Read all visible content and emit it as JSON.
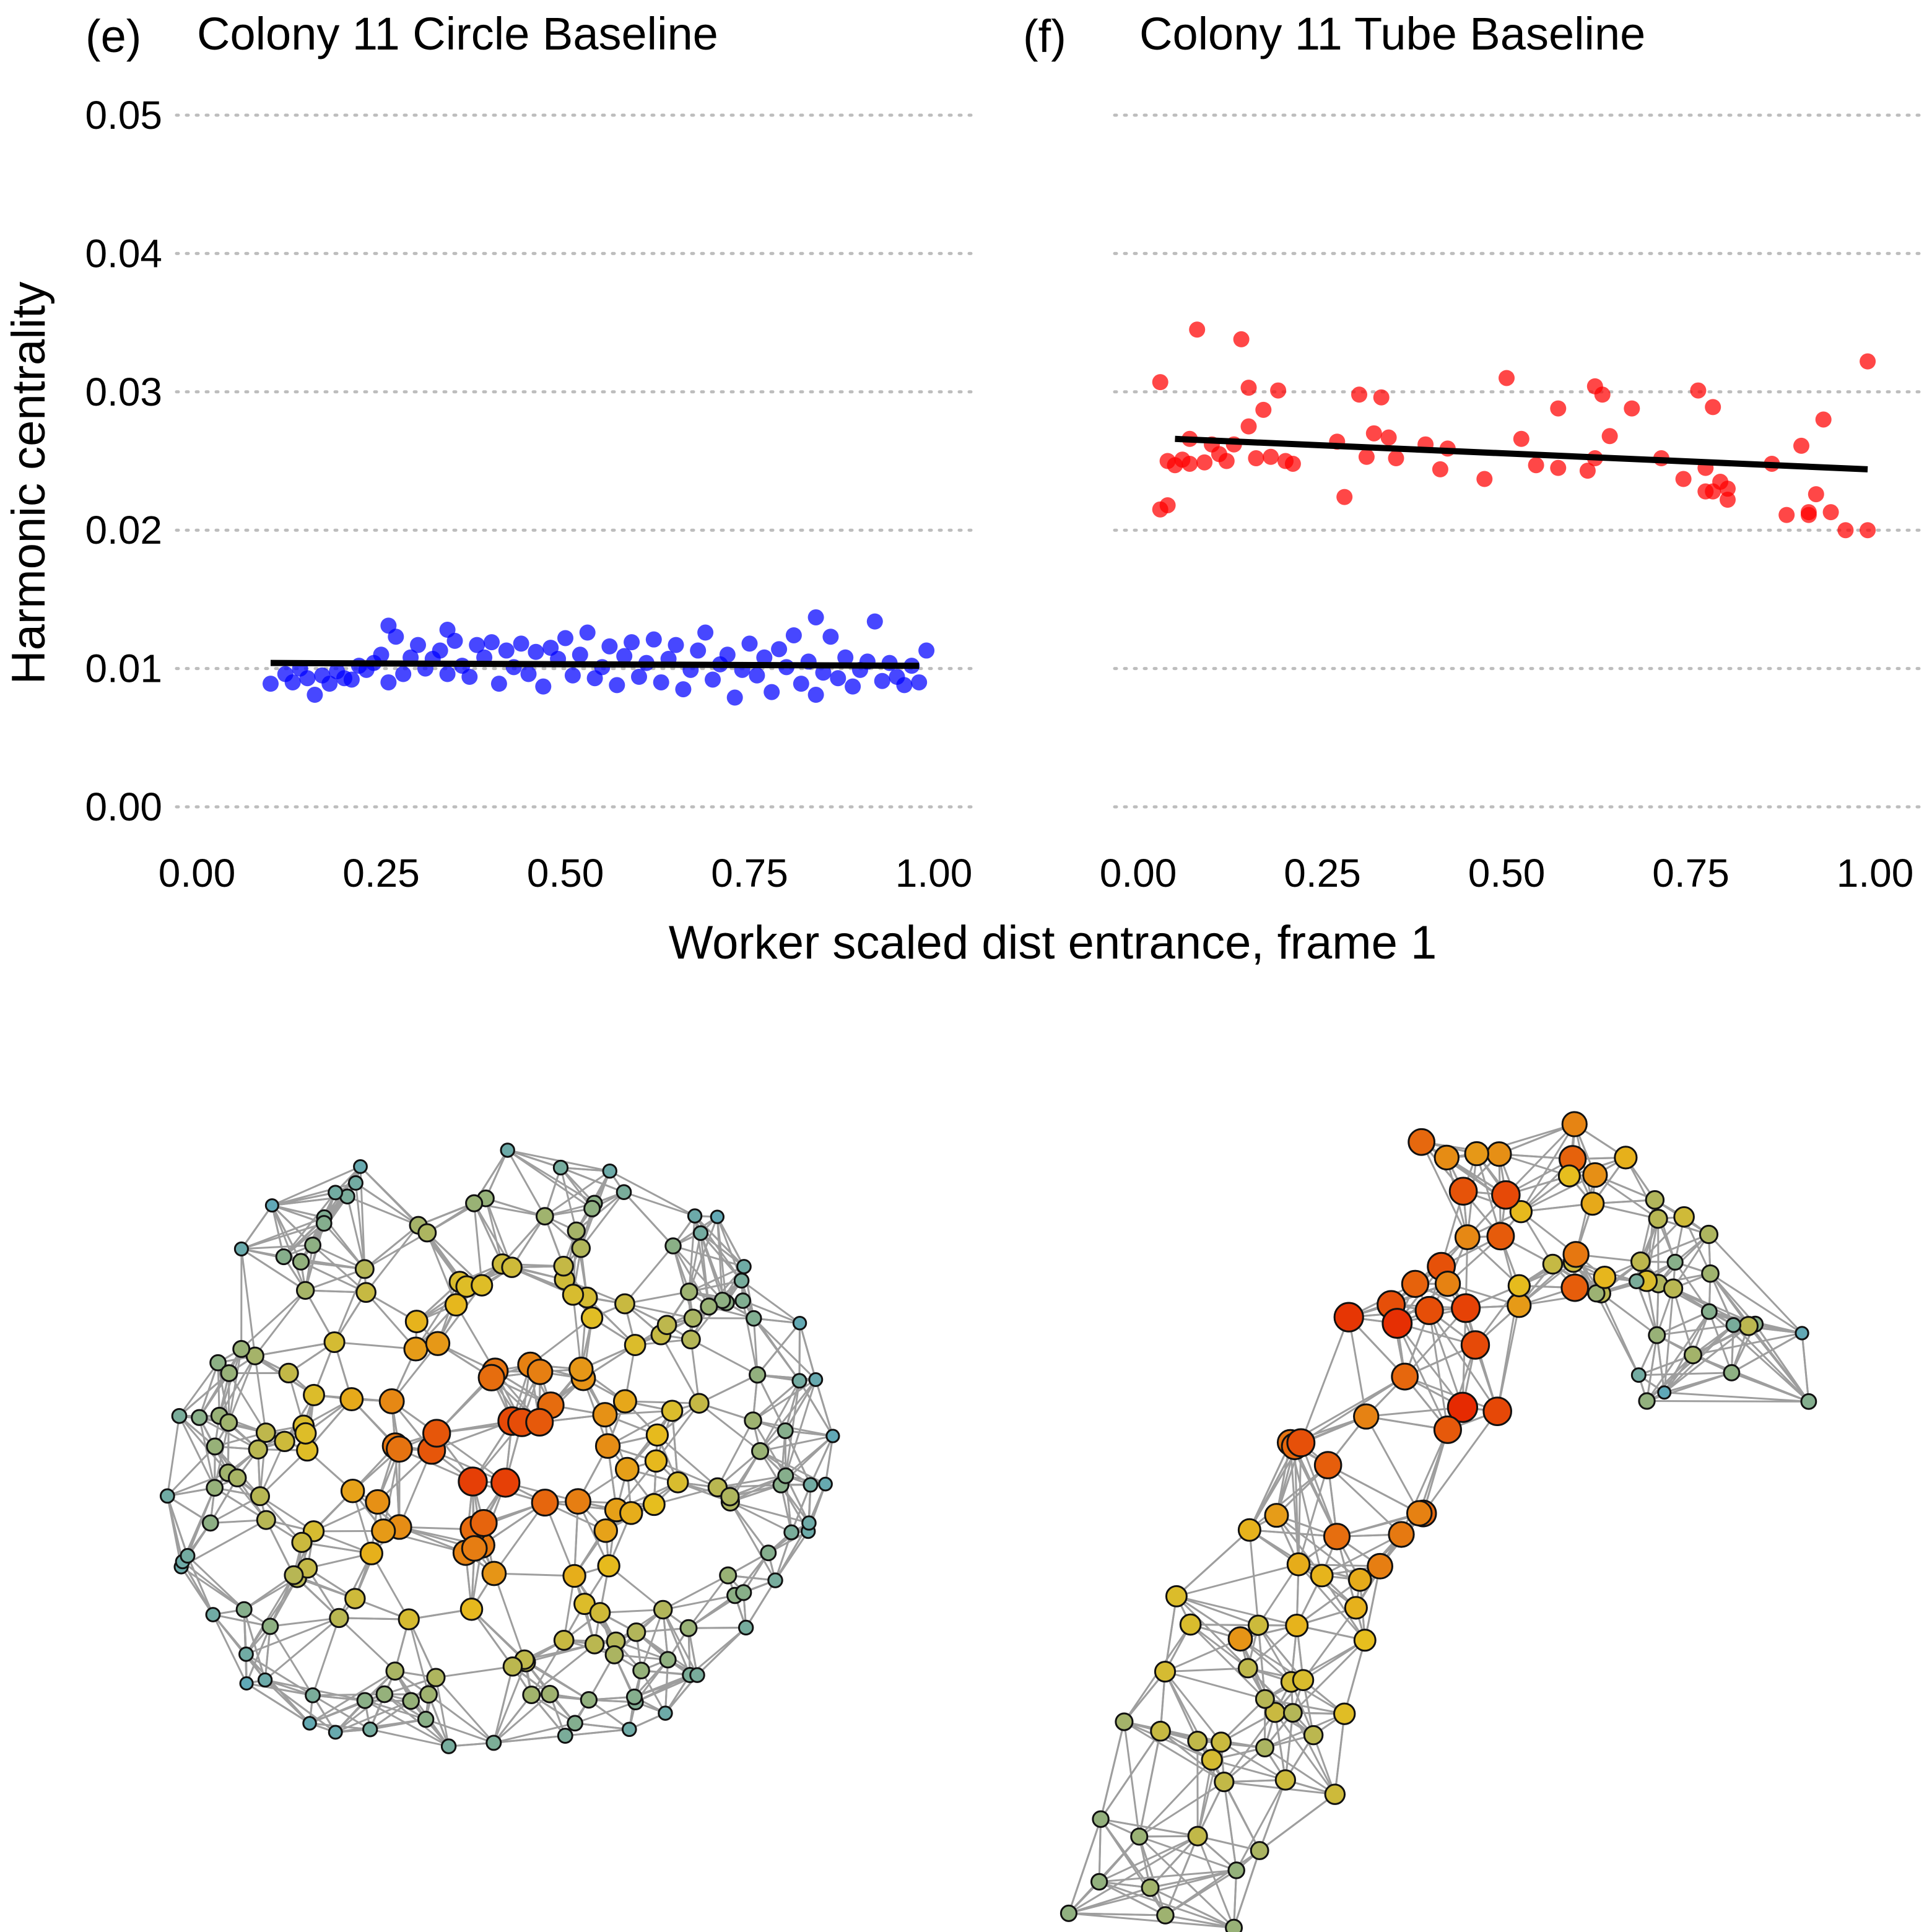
{
  "colors": {
    "circle_points": "#0000ff",
    "tube_points": "#ff0000",
    "trend_line": "#000000",
    "gridline": "#bdbdbd",
    "network_edges": "#9e9e9e",
    "node_low": "#5fa8b8",
    "node_mid": "#e6be1e",
    "node_high": "#e62200"
  },
  "axes": {
    "ylabel": "Harmonic centrality",
    "xlabel": "Worker scaled dist entrance, frame 1"
  },
  "chart_data": [
    {
      "type": "scatter",
      "panel": "(e)",
      "title": "Colony 11 Circle Baseline",
      "xlim": [
        0,
        1
      ],
      "ylim": [
        0,
        0.05
      ],
      "x_ticks": [
        "0.00",
        "0.25",
        "0.50",
        "0.75",
        "1.00"
      ],
      "y_ticks": [
        "0.00",
        "0.01",
        "0.02",
        "0.03",
        "0.04",
        "0.05"
      ],
      "grid": "horizontal-dotted",
      "series": [
        {
          "color": "#0000ff",
          "points": [
            [
              0.1,
              0.0089
            ],
            [
              0.12,
              0.0096
            ],
            [
              0.13,
              0.009
            ],
            [
              0.14,
              0.01
            ],
            [
              0.15,
              0.0093
            ],
            [
              0.16,
              0.0081
            ],
            [
              0.17,
              0.0095
            ],
            [
              0.18,
              0.0089
            ],
            [
              0.19,
              0.0098
            ],
            [
              0.2,
              0.0093
            ],
            [
              0.21,
              0.0092
            ],
            [
              0.22,
              0.0102
            ],
            [
              0.23,
              0.0099
            ],
            [
              0.24,
              0.0104
            ],
            [
              0.25,
              0.011
            ],
            [
              0.26,
              0.0131
            ],
            [
              0.26,
              0.009
            ],
            [
              0.27,
              0.0123
            ],
            [
              0.28,
              0.0096
            ],
            [
              0.29,
              0.0108
            ],
            [
              0.3,
              0.0117
            ],
            [
              0.31,
              0.01
            ],
            [
              0.32,
              0.0107
            ],
            [
              0.33,
              0.0113
            ],
            [
              0.34,
              0.0128
            ],
            [
              0.34,
              0.0096
            ],
            [
              0.35,
              0.012
            ],
            [
              0.36,
              0.0102
            ],
            [
              0.37,
              0.0094
            ],
            [
              0.38,
              0.0117
            ],
            [
              0.39,
              0.0108
            ],
            [
              0.4,
              0.0119
            ],
            [
              0.41,
              0.0089
            ],
            [
              0.42,
              0.0113
            ],
            [
              0.43,
              0.0101
            ],
            [
              0.44,
              0.0118
            ],
            [
              0.45,
              0.0096
            ],
            [
              0.46,
              0.0112
            ],
            [
              0.47,
              0.0087
            ],
            [
              0.48,
              0.0115
            ],
            [
              0.49,
              0.0107
            ],
            [
              0.5,
              0.0122
            ],
            [
              0.51,
              0.0095
            ],
            [
              0.52,
              0.011
            ],
            [
              0.53,
              0.0126
            ],
            [
              0.54,
              0.0093
            ],
            [
              0.55,
              0.0101
            ],
            [
              0.56,
              0.0116
            ],
            [
              0.57,
              0.0088
            ],
            [
              0.58,
              0.0109
            ],
            [
              0.59,
              0.0119
            ],
            [
              0.6,
              0.0094
            ],
            [
              0.61,
              0.0104
            ],
            [
              0.62,
              0.0121
            ],
            [
              0.63,
              0.009
            ],
            [
              0.64,
              0.0107
            ],
            [
              0.65,
              0.0117
            ],
            [
              0.66,
              0.0085
            ],
            [
              0.67,
              0.0099
            ],
            [
              0.68,
              0.0113
            ],
            [
              0.69,
              0.0126
            ],
            [
              0.7,
              0.0092
            ],
            [
              0.71,
              0.0103
            ],
            [
              0.72,
              0.011
            ],
            [
              0.73,
              0.0079
            ],
            [
              0.74,
              0.0099
            ],
            [
              0.75,
              0.0118
            ],
            [
              0.76,
              0.0095
            ],
            [
              0.77,
              0.0108
            ],
            [
              0.78,
              0.0083
            ],
            [
              0.79,
              0.0114
            ],
            [
              0.8,
              0.0101
            ],
            [
              0.81,
              0.0124
            ],
            [
              0.82,
              0.0089
            ],
            [
              0.83,
              0.0105
            ],
            [
              0.84,
              0.0137
            ],
            [
              0.84,
              0.0081
            ],
            [
              0.85,
              0.0097
            ],
            [
              0.86,
              0.0123
            ],
            [
              0.87,
              0.0093
            ],
            [
              0.88,
              0.0108
            ],
            [
              0.89,
              0.0087
            ],
            [
              0.9,
              0.0099
            ],
            [
              0.91,
              0.0105
            ],
            [
              0.92,
              0.0134
            ],
            [
              0.93,
              0.0091
            ],
            [
              0.94,
              0.0104
            ],
            [
              0.95,
              0.0094
            ],
            [
              0.96,
              0.0088
            ],
            [
              0.97,
              0.0102
            ],
            [
              0.98,
              0.009
            ],
            [
              0.99,
              0.0113
            ]
          ]
        }
      ],
      "trend": {
        "x": [
          0.1,
          0.98
        ],
        "y": [
          0.0104,
          0.0102
        ]
      }
    },
    {
      "type": "scatter",
      "panel": "(f)",
      "title": "Colony 11 Tube Baseline",
      "xlim": [
        0,
        1
      ],
      "ylim": [
        0,
        0.05
      ],
      "x_ticks": [
        "0.00",
        "0.25",
        "0.50",
        "0.75",
        "1.00"
      ],
      "y_ticks": [
        "0.00",
        "0.01",
        "0.02",
        "0.03",
        "0.04",
        "0.05"
      ],
      "grid": "horizontal-dotted",
      "series": [
        {
          "color": "#ff0000",
          "points": [
            [
              0.03,
              0.0307
            ],
            [
              0.03,
              0.0215
            ],
            [
              0.04,
              0.0218
            ],
            [
              0.04,
              0.025
            ],
            [
              0.05,
              0.0247
            ],
            [
              0.06,
              0.0251
            ],
            [
              0.07,
              0.0248
            ],
            [
              0.07,
              0.0266
            ],
            [
              0.08,
              0.0345
            ],
            [
              0.09,
              0.0249
            ],
            [
              0.1,
              0.0262
            ],
            [
              0.11,
              0.0255
            ],
            [
              0.12,
              0.025
            ],
            [
              0.13,
              0.0262
            ],
            [
              0.14,
              0.0338
            ],
            [
              0.15,
              0.0303
            ],
            [
              0.15,
              0.0275
            ],
            [
              0.16,
              0.0252
            ],
            [
              0.17,
              0.0287
            ],
            [
              0.18,
              0.0253
            ],
            [
              0.19,
              0.0301
            ],
            [
              0.2,
              0.025
            ],
            [
              0.21,
              0.0248
            ],
            [
              0.27,
              0.0264
            ],
            [
              0.28,
              0.0224
            ],
            [
              0.3,
              0.0298
            ],
            [
              0.31,
              0.0253
            ],
            [
              0.32,
              0.027
            ],
            [
              0.33,
              0.0296
            ],
            [
              0.34,
              0.0267
            ],
            [
              0.35,
              0.0252
            ],
            [
              0.39,
              0.0262
            ],
            [
              0.41,
              0.0244
            ],
            [
              0.42,
              0.0259
            ],
            [
              0.47,
              0.0237
            ],
            [
              0.5,
              0.031
            ],
            [
              0.52,
              0.0266
            ],
            [
              0.54,
              0.0247
            ],
            [
              0.57,
              0.0288
            ],
            [
              0.57,
              0.0245
            ],
            [
              0.61,
              0.0243
            ],
            [
              0.62,
              0.0252
            ],
            [
              0.62,
              0.0304
            ],
            [
              0.63,
              0.0298
            ],
            [
              0.64,
              0.0268
            ],
            [
              0.67,
              0.0288
            ],
            [
              0.71,
              0.0252
            ],
            [
              0.74,
              0.0237
            ],
            [
              0.76,
              0.0301
            ],
            [
              0.77,
              0.0245
            ],
            [
              0.77,
              0.0228
            ],
            [
              0.78,
              0.0289
            ],
            [
              0.78,
              0.0228
            ],
            [
              0.79,
              0.0235
            ],
            [
              0.8,
              0.023
            ],
            [
              0.8,
              0.0222
            ],
            [
              0.86,
              0.0248
            ],
            [
              0.88,
              0.0211
            ],
            [
              0.9,
              0.0261
            ],
            [
              0.91,
              0.0211
            ],
            [
              0.91,
              0.0213
            ],
            [
              0.92,
              0.0226
            ],
            [
              0.93,
              0.028
            ],
            [
              0.94,
              0.0213
            ],
            [
              0.96,
              0.02
            ],
            [
              0.99,
              0.0322
            ],
            [
              0.99,
              0.02
            ]
          ]
        }
      ],
      "trend": {
        "x": [
          0.05,
          0.99
        ],
        "y": [
          0.0266,
          0.0244
        ]
      }
    }
  ]
}
